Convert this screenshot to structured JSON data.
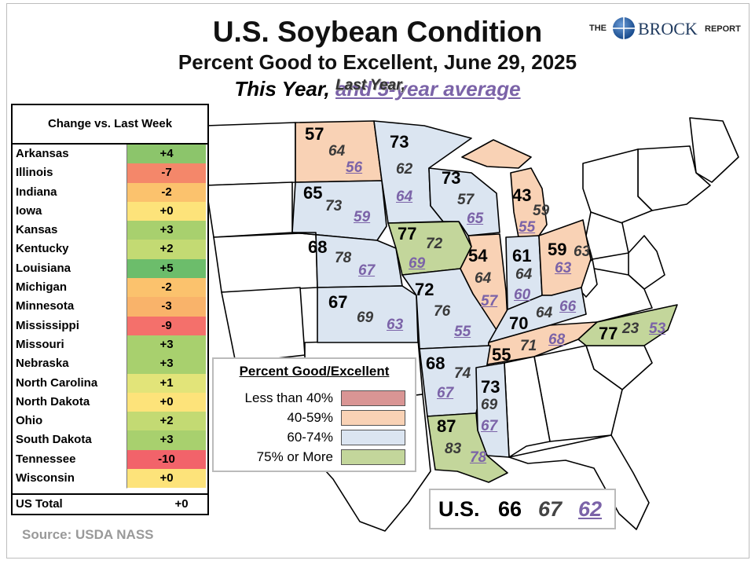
{
  "title": "U.S. Soybean Condition",
  "subtitle": "Percent Good to Excellent, June 29, 2025",
  "legend_line": {
    "this_year": "This Year,",
    "last_year": "Last Year,",
    "avg": "and 5-year average"
  },
  "logo": {
    "the": "THE",
    "brock": "BROCK",
    "report": "REPORT"
  },
  "change_table": {
    "header": "Change vs. Last Week",
    "rows": [
      {
        "state": "Arkansas",
        "change": "+4",
        "color": "#8cc56b"
      },
      {
        "state": "Illinois",
        "change": "-7",
        "color": "#f4876a"
      },
      {
        "state": "Indiana",
        "change": "-2",
        "color": "#fbc26d"
      },
      {
        "state": "Iowa",
        "change": "+0",
        "color": "#fde37a"
      },
      {
        "state": "Kansas",
        "change": "+3",
        "color": "#a8d06e"
      },
      {
        "state": "Kentucky",
        "change": "+2",
        "color": "#c3da73"
      },
      {
        "state": "Louisiana",
        "change": "+5",
        "color": "#6cbd6b"
      },
      {
        "state": "Michigan",
        "change": "-2",
        "color": "#fbc26d"
      },
      {
        "state": "Minnesota",
        "change": "-3",
        "color": "#f9b36a"
      },
      {
        "state": "Mississippi",
        "change": "-9",
        "color": "#f4706b"
      },
      {
        "state": "Missouri",
        "change": "+3",
        "color": "#a8d06e"
      },
      {
        "state": "Nebraska",
        "change": "+3",
        "color": "#a8d06e"
      },
      {
        "state": "North Carolina",
        "change": "+1",
        "color": "#e2e479"
      },
      {
        "state": "North Dakota",
        "change": "+0",
        "color": "#fde37a"
      },
      {
        "state": "Ohio",
        "change": "+2",
        "color": "#c3da73"
      },
      {
        "state": "South Dakota",
        "change": "+3",
        "color": "#a8d06e"
      },
      {
        "state": "Tennessee",
        "change": "-10",
        "color": "#f2636a"
      },
      {
        "state": "Wisconsin",
        "change": "+0",
        "color": "#fde37a"
      }
    ],
    "total_label": "US Total",
    "total_change": "+0"
  },
  "states": [
    {
      "name": "North Dakota",
      "this": "57",
      "last": "64",
      "avg": "56",
      "color": "#f9d2b5"
    },
    {
      "name": "Minnesota",
      "this": "73",
      "last": "62",
      "avg": "64",
      "color": "#dbe5f1"
    },
    {
      "name": "Wisconsin",
      "this": "73",
      "last": "57",
      "avg": "65",
      "color": "#dbe5f1"
    },
    {
      "name": "Michigan",
      "this": "43",
      "last": "59",
      "avg": "55",
      "color": "#f9d2b5"
    },
    {
      "name": "South Dakota",
      "this": "65",
      "last": "73",
      "avg": "59",
      "color": "#dbe5f1"
    },
    {
      "name": "Iowa",
      "this": "77",
      "last": "72",
      "avg": "69",
      "color": "#c3d69b"
    },
    {
      "name": "Nebraska",
      "this": "68",
      "last": "78",
      "avg": "67",
      "color": "#dbe5f1"
    },
    {
      "name": "Illinois",
      "this": "54",
      "last": "64",
      "avg": "57",
      "color": "#f9d2b5"
    },
    {
      "name": "Indiana",
      "this": "61",
      "last": "64",
      "avg": "60",
      "color": "#dbe5f1"
    },
    {
      "name": "Ohio",
      "this": "59",
      "last": "63",
      "avg": "63",
      "color": "#f9d2b5"
    },
    {
      "name": "Kansas",
      "this": "67",
      "last": "69",
      "avg": "63",
      "color": "#dbe5f1"
    },
    {
      "name": "Missouri",
      "this": "72",
      "last": "76",
      "avg": "55",
      "color": "#dbe5f1"
    },
    {
      "name": "Kentucky",
      "this": "70",
      "last": "64",
      "avg": "66",
      "color": "#dbe5f1"
    },
    {
      "name": "Tennessee",
      "this": "55",
      "last": "71",
      "avg": "68",
      "color": "#f9d2b5"
    },
    {
      "name": "North Carolina",
      "this": "77",
      "last": "23",
      "avg": "53",
      "color": "#c3d69b"
    },
    {
      "name": "Arkansas",
      "this": "68",
      "last": "74",
      "avg": "67",
      "color": "#dbe5f1"
    },
    {
      "name": "Mississippi",
      "this": "73",
      "last": "69",
      "avg": "67",
      "color": "#dbe5f1"
    },
    {
      "name": "Louisiana",
      "this": "87",
      "last": "83",
      "avg": "78",
      "color": "#c3d69b"
    }
  ],
  "legend": {
    "title": "Percent Good/Excellent",
    "items": [
      {
        "label": "Less than 40%",
        "color": "#d99594"
      },
      {
        "label": "40-59%",
        "color": "#f9d2b5"
      },
      {
        "label": "60-74%",
        "color": "#dbe5f1"
      },
      {
        "label": "75% or More",
        "color": "#c3d69b"
      }
    ]
  },
  "us_total": {
    "label": "U.S.",
    "this": "66",
    "last": "67",
    "avg": "62"
  },
  "source": "Source: USDA NASS"
}
